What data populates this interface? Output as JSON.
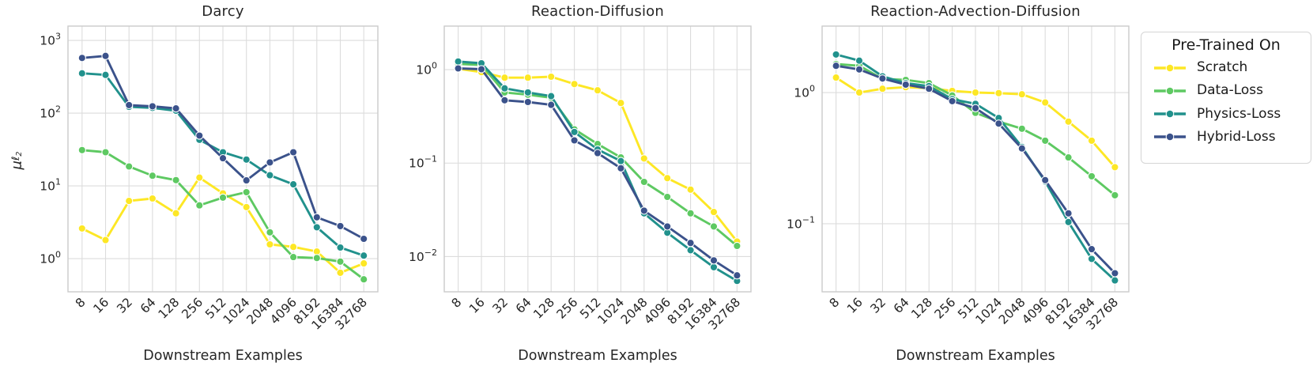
{
  "figure": {
    "background": "#ffffff",
    "text_color": "#262626",
    "grid_color": "#dcdcdc",
    "spine_color": "#cbcbcb",
    "ylabel": {
      "mu": "μ",
      "ell": "ℓ",
      "two": "2"
    }
  },
  "legend": {
    "title": "Pre-Trained On",
    "position": "outside-right",
    "entries": [
      {
        "label": "Scratch",
        "color": "#fde725"
      },
      {
        "label": "Data-Loss",
        "color": "#5ec962"
      },
      {
        "label": "Physics-Loss",
        "color": "#21918c"
      },
      {
        "label": "Hybrid-Loss",
        "color": "#3b528b"
      }
    ]
  },
  "chart_data": [
    {
      "type": "line",
      "title": "Darcy",
      "xlabel": "Downstream Examples",
      "ylabel": "μ_ℓ2",
      "x_scale": "log2",
      "y_scale": "log10",
      "grid": true,
      "categories": [
        "8",
        "16",
        "32",
        "64",
        "128",
        "256",
        "512",
        "1024",
        "2048",
        "4096",
        "8192",
        "16384",
        "32768"
      ],
      "ylim": [
        0.35,
        1570
      ],
      "yticks": [
        {
          "value": 1,
          "label": "10^0"
        },
        {
          "value": 10,
          "label": "10^1"
        },
        {
          "value": 100,
          "label": "10^2"
        },
        {
          "value": 1000,
          "label": "10^3"
        }
      ],
      "series": [
        {
          "name": "Scratch",
          "color": "#fde725",
          "values": [
            2.6,
            1.8,
            6.2,
            6.7,
            4.2,
            13,
            7.9,
            5.1,
            1.57,
            1.45,
            1.25,
            0.64,
            0.86
          ]
        },
        {
          "name": "Data-Loss",
          "color": "#5ec962",
          "values": [
            31,
            29,
            18.5,
            13.8,
            12,
            5.4,
            6.9,
            8.2,
            2.3,
            1.05,
            1.02,
            0.91,
            0.52
          ]
        },
        {
          "name": "Physics-Loss",
          "color": "#21918c",
          "values": [
            352,
            335,
            122,
            118,
            108,
            43,
            29,
            23,
            14,
            10.5,
            2.7,
            1.42,
            1.1
          ]
        },
        {
          "name": "Hybrid-Loss",
          "color": "#3b528b",
          "values": [
            573,
            611,
            129,
            124,
            116,
            49,
            24,
            11.9,
            21,
            29,
            3.7,
            2.8,
            1.87
          ]
        }
      ]
    },
    {
      "type": "line",
      "title": "Reaction-Diffusion",
      "xlabel": "Downstream Examples",
      "ylabel": "μ_ℓ2",
      "x_scale": "log2",
      "y_scale": "log10",
      "grid": true,
      "categories": [
        "8",
        "16",
        "32",
        "64",
        "128",
        "256",
        "512",
        "1024",
        "2048",
        "4096",
        "8192",
        "16384",
        "32768"
      ],
      "ylim": [
        0.0042,
        2.92
      ],
      "yticks": [
        {
          "value": 1,
          "label": "10^0"
        },
        {
          "value": 0.1,
          "label": "10^-1"
        },
        {
          "value": 0.01,
          "label": "10^-2"
        }
      ],
      "series": [
        {
          "name": "Scratch",
          "color": "#fde725",
          "values": [
            1.02,
            0.94,
            0.82,
            0.82,
            0.84,
            0.7,
            0.6,
            0.44,
            0.112,
            0.069,
            0.052,
            0.03,
            0.0145
          ]
        },
        {
          "name": "Data-Loss",
          "color": "#5ec962",
          "values": [
            1.15,
            1.12,
            0.57,
            0.54,
            0.5,
            0.23,
            0.16,
            0.115,
            0.063,
            0.0435,
            0.029,
            0.021,
            0.013
          ]
        },
        {
          "name": "Physics-Loss",
          "color": "#21918c",
          "values": [
            1.22,
            1.17,
            0.63,
            0.57,
            0.52,
            0.215,
            0.14,
            0.105,
            0.029,
            0.018,
            0.0117,
            0.0077,
            0.0055
          ]
        },
        {
          "name": "Hybrid-Loss",
          "color": "#3b528b",
          "values": [
            1.03,
            1.01,
            0.47,
            0.45,
            0.42,
            0.175,
            0.128,
            0.088,
            0.031,
            0.021,
            0.014,
            0.0091,
            0.0063
          ]
        }
      ]
    },
    {
      "type": "line",
      "title": "Reaction-Advection-Diffusion",
      "xlabel": "Downstream Examples",
      "ylabel": "μ_ℓ2",
      "x_scale": "log2",
      "y_scale": "log10",
      "grid": true,
      "categories": [
        "8",
        "16",
        "32",
        "64",
        "128",
        "256",
        "512",
        "1024",
        "2048",
        "4096",
        "8192",
        "16384",
        "32768"
      ],
      "ylim": [
        0.0303,
        3.21
      ],
      "yticks": [
        {
          "value": 1,
          "label": "10^0"
        },
        {
          "value": 0.1,
          "label": "10^-1"
        }
      ],
      "series": [
        {
          "name": "Scratch",
          "color": "#fde725",
          "values": [
            1.3,
            1.0,
            1.07,
            1.1,
            1.08,
            1.03,
            1.0,
            0.99,
            0.97,
            0.84,
            0.6,
            0.43,
            0.27
          ]
        },
        {
          "name": "Data-Loss",
          "color": "#5ec962",
          "values": [
            1.65,
            1.6,
            1.27,
            1.25,
            1.18,
            0.95,
            0.7,
            0.6,
            0.53,
            0.43,
            0.32,
            0.23,
            0.165
          ]
        },
        {
          "name": "Physics-Loss",
          "color": "#21918c",
          "values": [
            1.95,
            1.75,
            1.33,
            1.18,
            1.12,
            0.89,
            0.82,
            0.64,
            0.385,
            0.21,
            0.103,
            0.054,
            0.037
          ]
        },
        {
          "name": "Hybrid-Loss",
          "color": "#3b528b",
          "values": [
            1.6,
            1.5,
            1.28,
            1.15,
            1.07,
            0.86,
            0.76,
            0.58,
            0.375,
            0.215,
            0.12,
            0.064,
            0.042
          ]
        }
      ]
    }
  ]
}
